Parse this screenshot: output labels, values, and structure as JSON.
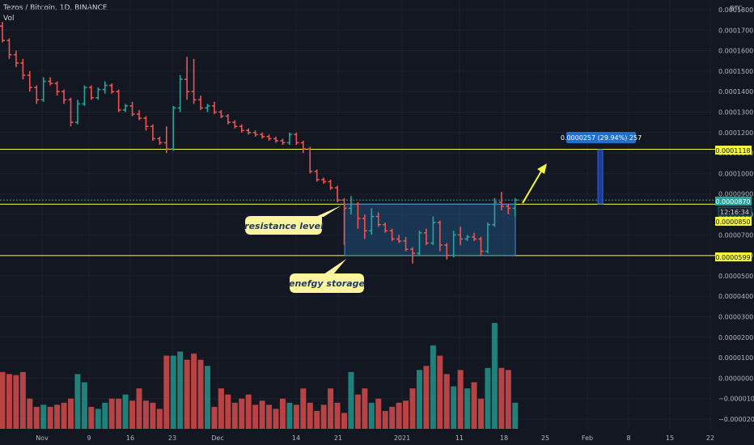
{
  "header": {
    "title": "Tezos / Bitcoin, 1D, BINANCE",
    "subtitle": "Vol"
  },
  "currency_label": "BTC",
  "colors": {
    "background": "#131722",
    "up": "#26a69a",
    "down": "#ef5350",
    "grid": "#1e222d",
    "level_line": "#f5f542",
    "box_fill": "#1f4f7a",
    "box_border": "#4a8fd1",
    "callout_fill": "#fff59d",
    "measure": "#2962ff"
  },
  "price_axis": {
    "ticks": [
      "0.0001800",
      "0.0001700",
      "0.0001600",
      "0.0001500",
      "0.0001400",
      "0.0001300",
      "0.0001200",
      "0.0001100",
      "0.0001000",
      "0.0000900",
      "0.0000800",
      "0.0000700",
      "0.0000600",
      "0.0000500",
      "0.0000400",
      "0.0000300",
      "0.0000200",
      "0.0000100",
      "0.0000000",
      "−0.0000100",
      "−0.0000200"
    ],
    "tags": [
      {
        "text": "0.0001118",
        "kind": "level"
      },
      {
        "text": "0.0000870",
        "kind": "price"
      },
      {
        "text": "12:16:34",
        "kind": "countdown"
      },
      {
        "text": "0.0000850",
        "kind": "level"
      },
      {
        "text": "0.0000599",
        "kind": "level"
      }
    ]
  },
  "time_axis": {
    "labels": [
      "Nov",
      "9",
      "16",
      "23",
      "Dec",
      "14",
      "21",
      "2021",
      "11",
      "18",
      "25",
      "Feb",
      "8",
      "15",
      "22"
    ]
  },
  "annotations": {
    "resistance_label": "resistance level",
    "storage_label": "enefgy storage",
    "measure_label": "0.0000257 (29.94%) 257"
  },
  "chart_data": {
    "type": "candlestick",
    "title": "Tezos / Bitcoin, 1D, BINANCE",
    "ylim": [
      -2.3e-05,
      0.000183
    ],
    "levels": [
      0.0001118,
      8.5e-05,
      5.99e-05
    ],
    "candles": [
      [
        0.000172,
        0.000174,
        0.000164,
        0.000165
      ],
      [
        0.000165,
        0.000166,
        0.000156,
        0.000158
      ],
      [
        0.000158,
        0.00016,
        0.000152,
        0.000154
      ],
      [
        0.000154,
        0.000156,
        0.000146,
        0.000148
      ],
      [
        0.000148,
        0.00015,
        0.00014,
        0.000142
      ],
      [
        0.000142,
        0.000143,
        0.000134,
        0.000136
      ],
      [
        0.000136,
        0.000147,
        0.000135,
        0.000145
      ],
      [
        0.000145,
        0.000147,
        0.000143,
        0.000144
      ],
      [
        0.000144,
        0.000145,
        0.000138,
        0.00014
      ],
      [
        0.00014,
        0.000141,
        0.000134,
        0.000136
      ],
      [
        0.000136,
        0.000137,
        0.000123,
        0.000125
      ],
      [
        0.000125,
        0.000136,
        0.000124,
        0.000134
      ],
      [
        0.000134,
        0.000143,
        0.000133,
        0.000142
      ],
      [
        0.000142,
        0.000143,
        0.000136,
        0.000137
      ],
      [
        0.000137,
        0.000142,
        0.000136,
        0.000141
      ],
      [
        0.000141,
        0.000145,
        0.000139,
        0.000143
      ],
      [
        0.000143,
        0.000144,
        0.000139,
        0.00014
      ],
      [
        0.00014,
        0.000141,
        0.00013,
        0.000131
      ],
      [
        0.000131,
        0.000134,
        0.00013,
        0.000133
      ],
      [
        0.000133,
        0.000135,
        0.000128,
        0.000129
      ],
      [
        0.000129,
        0.000131,
        0.000126,
        0.000127
      ],
      [
        0.000127,
        0.000128,
        0.000121,
        0.000123
      ],
      [
        0.000123,
        0.000124,
        0.000116,
        0.000117
      ],
      [
        0.000117,
        0.000118,
        0.000114,
        0.000115
      ],
      [
        0.000115,
        0.000123,
        0.00011,
        0.000112
      ],
      [
        0.000112,
        0.000133,
        0.000111,
        0.000132
      ],
      [
        0.000132,
        0.000148,
        0.00013,
        0.000146
      ],
      [
        0.000146,
        0.000157,
        0.000136,
        0.00014
      ],
      [
        0.00014,
        0.000156,
        0.000134,
        0.000136
      ],
      [
        0.000136,
        0.000138,
        0.000131,
        0.000132
      ],
      [
        0.000132,
        0.000134,
        0.00013,
        0.000133
      ],
      [
        0.000133,
        0.000135,
        0.000129,
        0.00013
      ],
      [
        0.00013,
        0.000131,
        0.000127,
        0.000128
      ],
      [
        0.000128,
        0.000129,
        0.000124,
        0.000125
      ],
      [
        0.000125,
        0.000126,
        0.000122,
        0.000123
      ],
      [
        0.000123,
        0.000124,
        0.00012,
        0.000121
      ],
      [
        0.000121,
        0.000122,
        0.000119,
        0.00012
      ],
      [
        0.00012,
        0.000121,
        0.000118,
        0.000119
      ],
      [
        0.000119,
        0.00012,
        0.000117,
        0.000118
      ],
      [
        0.000118,
        0.000119,
        0.000116,
        0.000117
      ],
      [
        0.000117,
        0.000118,
        0.000115,
        0.000116
      ],
      [
        0.000116,
        0.000117,
        0.000114,
        0.000115
      ],
      [
        0.000115,
        0.00012,
        0.000114,
        0.000119
      ],
      [
        0.000119,
        0.00012,
        0.000114,
        0.000115
      ],
      [
        0.000115,
        0.000116,
        0.00011,
        0.000112
      ],
      [
        0.000112,
        0.000113,
        0.0001,
        0.000101
      ],
      [
        0.000101,
        0.000102,
        9.6e-05,
        9.7e-05
      ],
      [
        9.7e-05,
        9.8e-05,
        9.5e-05,
        9.6e-05
      ],
      [
        9.6e-05,
        9.7e-05,
        9.2e-05,
        9.3e-05
      ],
      [
        9.3e-05,
        9.4e-05,
        8.6e-05,
        8.7e-05
      ],
      [
        8.7e-05,
        8.8e-05,
        6.5e-05,
        8.3e-05
      ],
      [
        8.3e-05,
        8.9e-05,
        8e-05,
        8.5e-05
      ],
      [
        8.5e-05,
        8.6e-05,
        7.3e-05,
        7.8e-05
      ],
      [
        7.8e-05,
        8e-05,
        6.8e-05,
        7.2e-05
      ],
      [
        7.2e-05,
        8.3e-05,
        7e-05,
        7.9e-05
      ],
      [
        7.9e-05,
        8.1e-05,
        7.4e-05,
        7.5e-05
      ],
      [
        7.5e-05,
        7.6e-05,
        7.1e-05,
        7.2e-05
      ],
      [
        7.2e-05,
        7.3e-05,
        6.7e-05,
        6.8e-05
      ],
      [
        6.8e-05,
        7e-05,
        6.6e-05,
        6.7e-05
      ],
      [
        6.7e-05,
        6.9e-05,
        6.2e-05,
        6.3e-05
      ],
      [
        6.3e-05,
        6.4e-05,
        5.6e-05,
        6.1e-05
      ],
      [
        6.1e-05,
        7.2e-05,
        6e-05,
        7.1e-05
      ],
      [
        7.1e-05,
        7.3e-05,
        6.5e-05,
        6.6e-05
      ],
      [
        6.6e-05,
        7.9e-05,
        6.5e-05,
        7.6e-05
      ],
      [
        7.6e-05,
        7.7e-05,
        6.2e-05,
        6.5e-05
      ],
      [
        6.5e-05,
        6.6e-05,
        5.8e-05,
        6e-05
      ],
      [
        6e-05,
        7.2e-05,
        5.9e-05,
        7e-05
      ],
      [
        7e-05,
        7.4e-05,
        6.5e-05,
        6.8e-05
      ],
      [
        6.8e-05,
        7e-05,
        6.7e-05,
        6.9e-05
      ],
      [
        6.9e-05,
        7.1e-05,
        6.7e-05,
        6.8e-05
      ],
      [
        6.8e-05,
        6.9e-05,
        6e-05,
        6.2e-05
      ],
      [
        6.2e-05,
        7.6e-05,
        6.1e-05,
        7.5e-05
      ],
      [
        7.5e-05,
        8.8e-05,
        7.4e-05,
        8.6e-05
      ],
      [
        8.6e-05,
        9.1e-05,
        8.2e-05,
        8.4e-05
      ],
      [
        8.4e-05,
        8.5e-05,
        8e-05,
        8.3e-05
      ],
      [
        8.3e-05,
        8.8e-05,
        7.9e-05,
        8.7e-05
      ]
    ],
    "volume": [
      3e-06,
      2e-06,
      1.5e-06,
      3e-06,
      -1e-05,
      -1.4e-05,
      -1.3e-05,
      -1.4e-05,
      -1.3e-05,
      -1.2e-05,
      -1e-05,
      2e-06,
      -2e-06,
      -1.4e-05,
      -1.5e-05,
      -1.2e-05,
      -1e-05,
      -1e-05,
      -8e-06,
      -1.1e-05,
      -5e-06,
      -1.1e-05,
      -1.2e-05,
      -1.5e-05,
      1.1e-05,
      1.1e-05,
      1.3e-05,
      9e-06,
      1.2e-05,
      9e-06,
      6e-06,
      -1.4e-05,
      -5e-06,
      -8e-06,
      -1.2e-05,
      -1e-05,
      -8e-06,
      -1.3e-05,
      -1.1e-05,
      -1.3e-05,
      -1.5e-05,
      -1e-05,
      -1.2e-05,
      -1.3e-05,
      -5e-06,
      -1.2e-05,
      -1.6e-05,
      -1.3e-05,
      -5e-06,
      -1.2e-05,
      -1.7e-05,
      3e-06,
      -8e-06,
      -5e-06,
      -1.2e-05,
      -1e-05,
      -1.6e-05,
      -1.4e-05,
      -1.2e-05,
      -1.1e-05,
      -5e-06,
      4e-06,
      6e-06,
      1.6e-05,
      1.1e-05,
      2e-06,
      -4e-06,
      4e-06,
      -5e-06,
      -2e-06,
      -1e-05,
      5e-06,
      2.7e-05,
      5e-06,
      4e-06,
      -1.2e-05
    ]
  }
}
